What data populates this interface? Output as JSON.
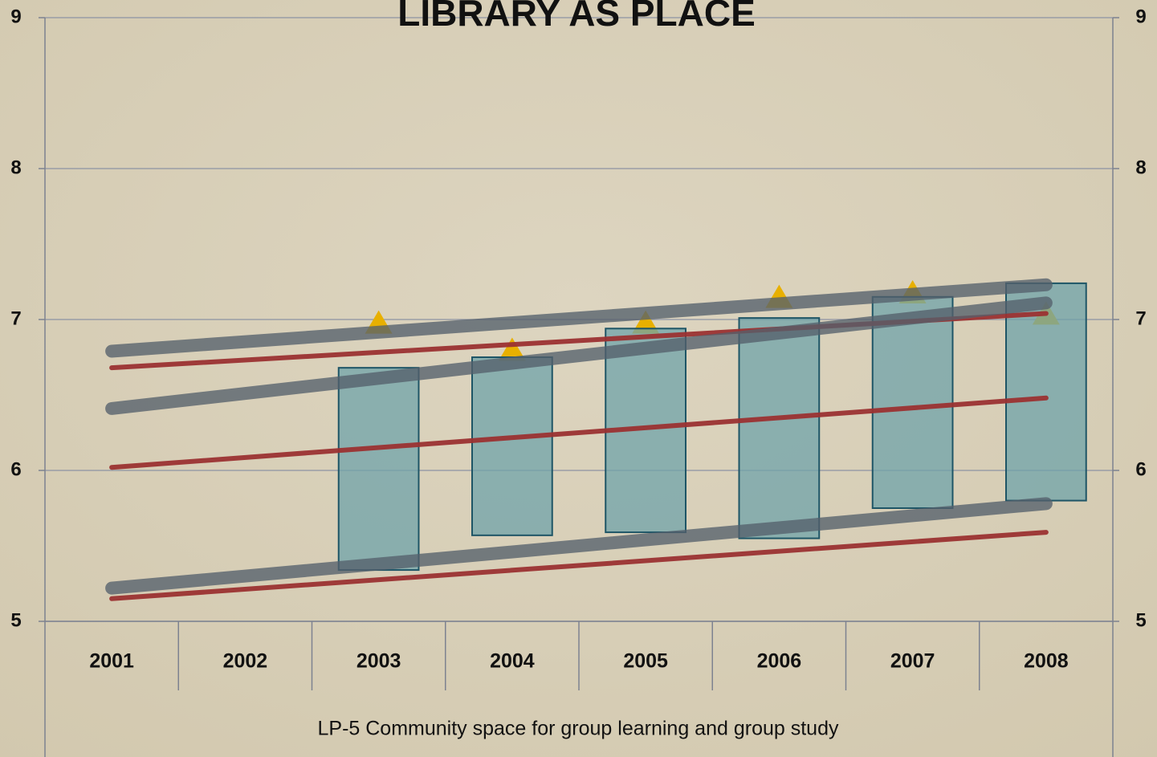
{
  "chart_data": {
    "type": "gap",
    "title": "LIBRARY AS PLACE",
    "x_label": "LP-5 Community space for group learning and group study",
    "categories": [
      "2001",
      "2002",
      "2003",
      "2004",
      "2005",
      "2006",
      "2007",
      "2008"
    ],
    "ylim": [
      5,
      9
    ],
    "yticks": [
      5,
      6,
      7,
      8,
      9
    ],
    "y2lim": [
      5,
      9
    ],
    "y2ticks": [
      5,
      6,
      7,
      8,
      9
    ],
    "grid": true,
    "bars": {
      "color": "#6fa3aa",
      "low": [
        null,
        null,
        5.34,
        5.57,
        5.59,
        5.55,
        5.75,
        5.8
      ],
      "high": [
        null,
        null,
        6.68,
        6.75,
        6.94,
        7.01,
        7.15,
        7.24
      ]
    },
    "markers": {
      "color": "#e8b000",
      "values": [
        null,
        null,
        6.97,
        6.79,
        6.97,
        7.14,
        7.17,
        7.03
      ]
    },
    "trendlines": [
      {
        "color": "#9b3232",
        "start": 6.68,
        "end": 7.04
      },
      {
        "color": "#9b3232",
        "start": 6.02,
        "end": 6.48
      },
      {
        "color": "#9b3232",
        "start": 5.15,
        "end": 5.59
      },
      {
        "color": "#55606b",
        "start": 6.79,
        "end": 7.23
      },
      {
        "color": "#55606b",
        "start": 6.41,
        "end": 7.11
      },
      {
        "color": "#55606b",
        "start": 5.22,
        "end": 5.78
      }
    ]
  }
}
